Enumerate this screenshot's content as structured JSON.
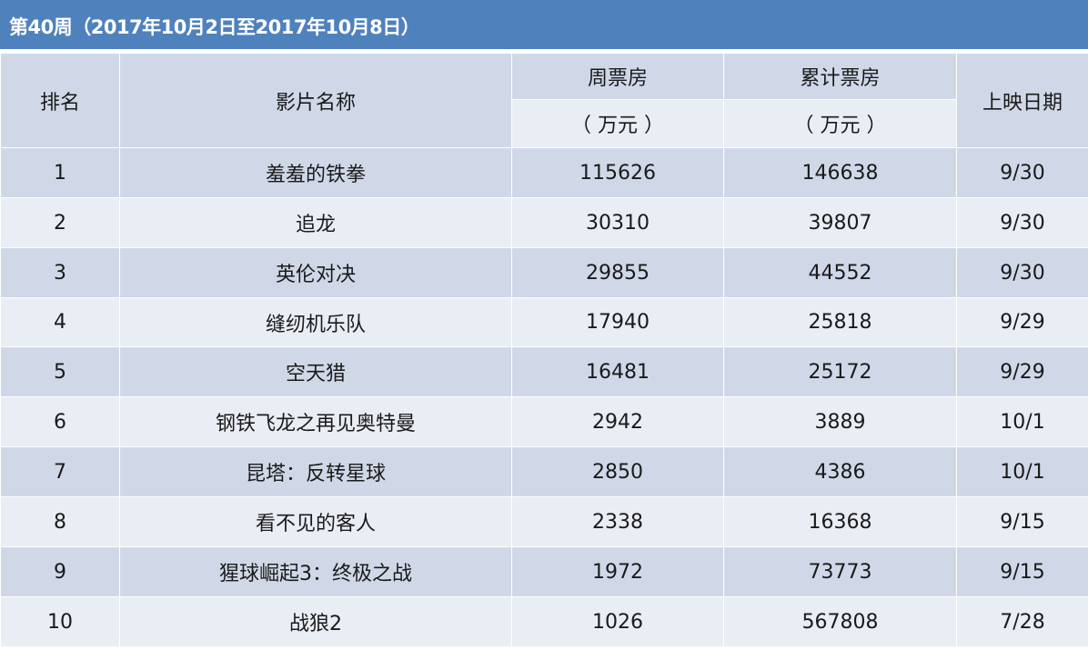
{
  "title": "第40周（2017年10月2日至2017年10月8日）",
  "colors": {
    "title_bg": "#4f81bd",
    "row_dark": "#d0d8e8",
    "row_light": "#e9edf4"
  },
  "headers": {
    "rank": "排名",
    "film_name": "影片名称",
    "weekly_box": "周票房",
    "cumulative_box": "累计票房",
    "unit_weekly": "（ 万元 ）",
    "unit_cumulative": "（ 万元 ）",
    "release_date": "上映日期"
  },
  "rows": [
    {
      "rank": "1",
      "name": "羞羞的铁拳",
      "weekly": "115626",
      "total": "146638",
      "date": "9/30"
    },
    {
      "rank": "2",
      "name": "追龙",
      "weekly": "30310",
      "total": "39807",
      "date": "9/30"
    },
    {
      "rank": "3",
      "name": "英伦对决",
      "weekly": "29855",
      "total": "44552",
      "date": "9/30"
    },
    {
      "rank": "4",
      "name": "缝纫机乐队",
      "weekly": "17940",
      "total": "25818",
      "date": "9/29"
    },
    {
      "rank": "5",
      "name": "空天猎",
      "weekly": "16481",
      "total": "25172",
      "date": "9/29"
    },
    {
      "rank": "6",
      "name": "钢铁飞龙之再见奥特曼",
      "weekly": "2942",
      "total": "3889",
      "date": "10/1"
    },
    {
      "rank": "7",
      "name": "昆塔：反转星球",
      "weekly": "2850",
      "total": "4386",
      "date": "10/1"
    },
    {
      "rank": "8",
      "name": "看不见的客人",
      "weekly": "2338",
      "total": "16368",
      "date": "9/15"
    },
    {
      "rank": "9",
      "name": "猩球崛起3：终极之战",
      "weekly": "1972",
      "total": "73773",
      "date": "9/15"
    },
    {
      "rank": "10",
      "name": "战狼2",
      "weekly": "1026",
      "total": "567808",
      "date": "7/28"
    }
  ]
}
